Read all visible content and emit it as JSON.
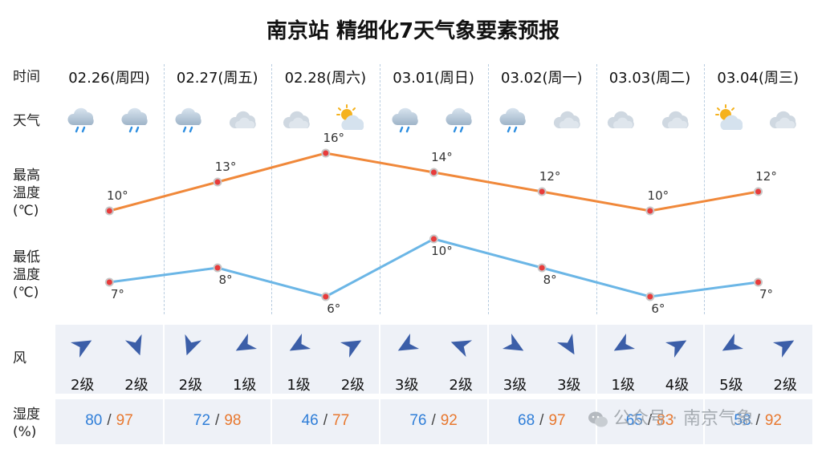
{
  "title": "南京站 精细化7天气象要素预报",
  "labels": {
    "time": "时间",
    "weather": "天气",
    "high_line1": "最高",
    "high_line2": "温度",
    "high_line3": "(℃)",
    "low_line1": "最低",
    "low_line2": "温度",
    "low_line3": "(℃)",
    "wind": "风",
    "humidity_line1": "湿度",
    "humidity_line2": "(%)"
  },
  "colors": {
    "high_line": "#f0883a",
    "low_line": "#6bb6e6",
    "humidity_min": "#2f7ed8",
    "humidity_max": "#e8782f"
  },
  "days": [
    {
      "date": "02.26(周四)",
      "icons": [
        "rain-cloud-icon",
        "rain-cloud-icon"
      ],
      "wind_dirs": [
        60,
        160
      ],
      "wind_levels": [
        "2级",
        "2级"
      ],
      "humidity_min": "80",
      "humidity_max": "97"
    },
    {
      "date": "02.27(周五)",
      "icons": [
        "rain-cloud-icon",
        "cloud-icon"
      ],
      "wind_dirs": [
        200,
        240
      ],
      "wind_levels": [
        "2级",
        "1级"
      ],
      "humidity_min": "72",
      "humidity_max": "98"
    },
    {
      "date": "02.28(周六)",
      "icons": [
        "cloud-icon",
        "sun-cloud-icon"
      ],
      "wind_dirs": [
        240,
        60
      ],
      "wind_levels": [
        "1级",
        "2级"
      ],
      "humidity_min": "46",
      "humidity_max": "77"
    },
    {
      "date": "03.01(周日)",
      "icons": [
        "rain-cloud-icon",
        "rain-cloud-icon"
      ],
      "wind_dirs": [
        240,
        290
      ],
      "wind_levels": [
        "3级",
        "2级"
      ],
      "humidity_min": "76",
      "humidity_max": "92"
    },
    {
      "date": "03.02(周一)",
      "icons": [
        "rain-cloud-icon",
        "cloud-icon"
      ],
      "wind_dirs": [
        120,
        150
      ],
      "wind_levels": [
        "3级",
        "3级"
      ],
      "humidity_min": "68",
      "humidity_max": "97"
    },
    {
      "date": "03.03(周二)",
      "icons": [
        "cloud-icon",
        "cloud-icon"
      ],
      "wind_dirs": [
        240,
        60
      ],
      "wind_levels": [
        "1级",
        "4级"
      ],
      "humidity_min": "65",
      "humidity_max": "83"
    },
    {
      "date": "03.04(周三)",
      "icons": [
        "sun-cloud-icon",
        "cloud-icon"
      ],
      "wind_dirs": [
        240,
        60
      ],
      "wind_levels": [
        "5级",
        "2级"
      ],
      "humidity_min": "58",
      "humidity_max": "92"
    }
  ],
  "chart_data": {
    "type": "line",
    "categories": [
      "02.26(周四)",
      "02.27(周五)",
      "02.28(周六)",
      "03.01(周日)",
      "03.02(周一)",
      "03.03(周二)",
      "03.04(周三)"
    ],
    "series": [
      {
        "values": [
          10,
          13,
          16,
          14,
          12,
          10,
          12
        ],
        "labels": [
          "10°",
          "13°",
          "16°",
          "14°",
          "12°",
          "10°",
          "12°"
        ]
      },
      {
        "values": [
          7,
          8,
          6,
          10,
          8,
          6,
          7
        ],
        "labels": [
          "7°",
          "8°",
          "6°",
          "10°",
          "8°",
          "6°",
          "7°"
        ]
      }
    ],
    "grid": false
  },
  "watermark": "公众号 · 南京气象"
}
